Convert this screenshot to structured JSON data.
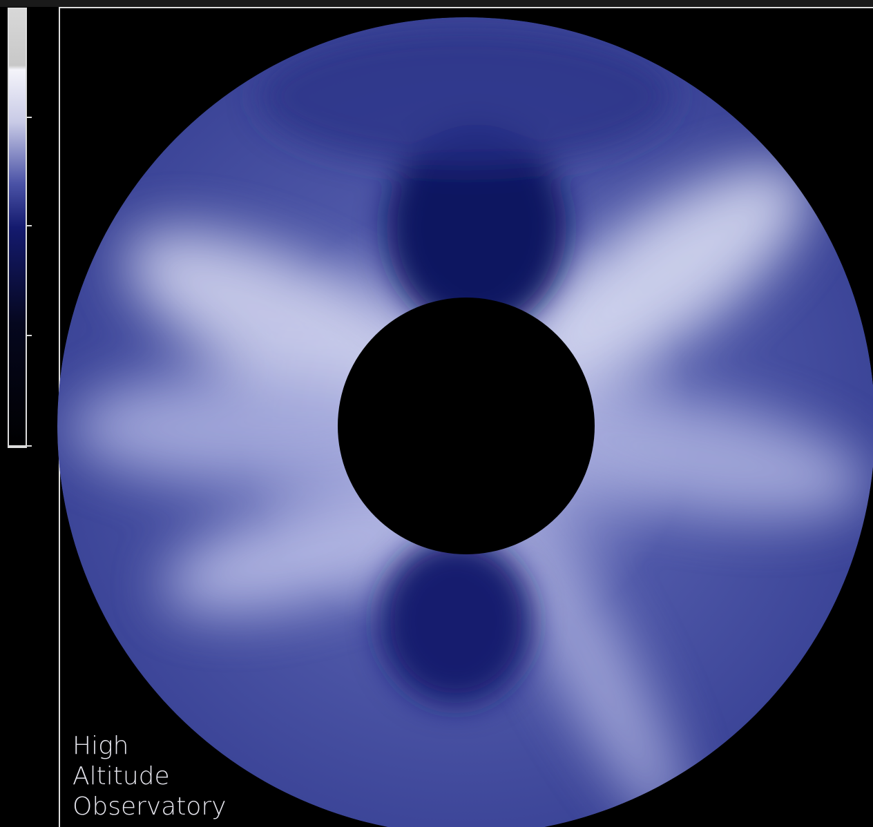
{
  "label": {
    "lines": [
      "High",
      "Altitude",
      "Observatory"
    ]
  }
}
